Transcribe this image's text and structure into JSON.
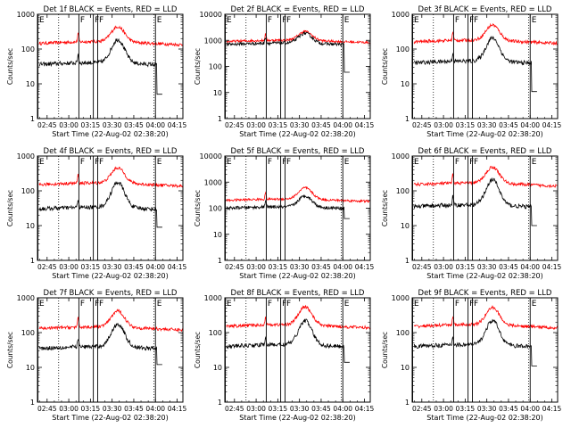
{
  "chart_data": [
    {
      "type": "line",
      "title": "Det 1f BLACK = Events, RED = LLD",
      "xlabel": "Start Time (22-Aug-02 02:38:20)",
      "ylabel": "Counts/sec",
      "yscale": "log",
      "ylim": [
        1,
        1000
      ],
      "yticks": [
        "1",
        "10",
        "100",
        "1000"
      ],
      "xticks": [
        "02:45",
        "03:00",
        "03:15",
        "03:30",
        "03:45",
        "04:00",
        "04:15"
      ],
      "xlim": [
        "02:38:20",
        "04:19"
      ],
      "grid": false,
      "markers": [
        {
          "label": "E",
          "time": "02:38:40"
        },
        {
          "label": "F",
          "time": "03:07"
        },
        {
          "label": "F",
          "time": "03:17"
        },
        {
          "label": "F",
          "time": "03:20"
        },
        {
          "label": "E",
          "time": "04:00"
        }
      ],
      "dotted_lines": [
        "02:53",
        "03:59"
      ],
      "series": [
        {
          "color": "#ff0000",
          "baseline": 145,
          "peak": 400
        },
        {
          "color": "#000000",
          "baseline": 36,
          "peak": 170,
          "dropout": 5
        }
      ]
    },
    {
      "type": "line",
      "title": "Det 2f BLACK = Events, RED = LLD",
      "xlabel": "Start Time (22-Aug-02 02:38:20)",
      "ylabel": "Counts/sec",
      "yscale": "log",
      "ylim": [
        1,
        10000
      ],
      "yticks": [
        "1",
        "10",
        "100",
        "1000",
        "10000"
      ],
      "xticks": [
        "02:45",
        "03:00",
        "03:15",
        "03:30",
        "03:45",
        "04:00",
        "04:15"
      ],
      "xlim": [
        "02:38:20",
        "04:19"
      ],
      "grid": false,
      "markers": [
        {
          "label": "E",
          "time": "02:38:40"
        },
        {
          "label": "F",
          "time": "03:07"
        },
        {
          "label": "F",
          "time": "03:17"
        },
        {
          "label": "F",
          "time": "03:20"
        },
        {
          "label": "E",
          "time": "04:00"
        }
      ],
      "dotted_lines": [
        "02:53",
        "03:59"
      ],
      "series": [
        {
          "color": "#ff0000",
          "baseline": 900,
          "peak": 2000
        },
        {
          "color": "#000000",
          "baseline": 700,
          "peak": 1700,
          "dropout": 60
        }
      ]
    },
    {
      "type": "line",
      "title": "Det 3f BLACK = Events, RED = LLD",
      "xlabel": "Start Time (22-Aug-02 02:38:20)",
      "ylabel": "Counts/sec",
      "yscale": "log",
      "ylim": [
        1,
        1000
      ],
      "yticks": [
        "1",
        "10",
        "100",
        "1000"
      ],
      "xticks": [
        "02:45",
        "03:00",
        "03:15",
        "03:30",
        "03:45",
        "04:00",
        "04:15"
      ],
      "xlim": [
        "02:38:20",
        "04:19"
      ],
      "grid": false,
      "markers": [
        {
          "label": "E",
          "time": "02:38:40"
        },
        {
          "label": "F",
          "time": "03:07"
        },
        {
          "label": "F",
          "time": "03:17"
        },
        {
          "label": "F",
          "time": "03:20"
        },
        {
          "label": "E",
          "time": "04:00"
        }
      ],
      "dotted_lines": [
        "02:53",
        "03:59"
      ],
      "series": [
        {
          "color": "#ff0000",
          "baseline": 160,
          "peak": 450
        },
        {
          "color": "#000000",
          "baseline": 40,
          "peak": 190,
          "dropout": 6
        }
      ]
    },
    {
      "type": "line",
      "title": "Det 4f BLACK = Events, RED = LLD",
      "xlabel": "Start Time (22-Aug-02 02:38:20)",
      "ylabel": "Counts/sec",
      "yscale": "log",
      "ylim": [
        1,
        1000
      ],
      "yticks": [
        "1",
        "10",
        "100",
        "1000"
      ],
      "xticks": [
        "02:45",
        "03:00",
        "03:15",
        "03:30",
        "03:45",
        "04:00",
        "04:15"
      ],
      "xlim": [
        "02:38:20",
        "04:19"
      ],
      "grid": false,
      "markers": [
        {
          "label": "E",
          "time": "02:38:40"
        },
        {
          "label": "F",
          "time": "03:07"
        },
        {
          "label": "F",
          "time": "03:17"
        },
        {
          "label": "F",
          "time": "03:20"
        },
        {
          "label": "E",
          "time": "04:00"
        }
      ],
      "dotted_lines": [
        "02:53",
        "03:59"
      ],
      "series": [
        {
          "color": "#ff0000",
          "baseline": 150,
          "peak": 420
        },
        {
          "color": "#000000",
          "baseline": 30,
          "peak": 160,
          "dropout": 9
        }
      ]
    },
    {
      "type": "line",
      "title": "Det 5f BLACK = Events, RED = LLD",
      "xlabel": "Start Time (22-Aug-02 02:38:20)",
      "ylabel": "Counts/sec",
      "yscale": "log",
      "ylim": [
        1,
        10000
      ],
      "yticks": [
        "1",
        "10",
        "100",
        "1000",
        "10000"
      ],
      "xticks": [
        "02:45",
        "03:00",
        "03:15",
        "03:30",
        "03:45",
        "04:00",
        "04:15"
      ],
      "xlim": [
        "02:38:20",
        "04:19"
      ],
      "grid": false,
      "markers": [
        {
          "label": "E",
          "time": "02:38:40"
        },
        {
          "label": "F",
          "time": "03:07"
        },
        {
          "label": "F",
          "time": "03:17"
        },
        {
          "label": "F",
          "time": "03:20"
        },
        {
          "label": "E",
          "time": "04:00"
        }
      ],
      "dotted_lines": [
        "02:53",
        "03:59"
      ],
      "series": [
        {
          "color": "#ff0000",
          "baseline": 200,
          "peak": 550
        },
        {
          "color": "#000000",
          "baseline": 100,
          "peak": 270,
          "dropout": 40
        }
      ]
    },
    {
      "type": "line",
      "title": "Det 6f BLACK = Events, RED = LLD",
      "xlabel": "Start Time (22-Aug-02 02:38:20)",
      "ylabel": "Counts/sec",
      "yscale": "log",
      "ylim": [
        1,
        1000
      ],
      "yticks": [
        "1",
        "10",
        "100",
        "1000"
      ],
      "xticks": [
        "02:45",
        "03:00",
        "03:15",
        "03:30",
        "03:45",
        "04:00",
        "04:15"
      ],
      "xlim": [
        "02:38:20",
        "04:19"
      ],
      "grid": false,
      "markers": [
        {
          "label": "E",
          "time": "02:38:40"
        },
        {
          "label": "F",
          "time": "03:07"
        },
        {
          "label": "F",
          "time": "03:17"
        },
        {
          "label": "F",
          "time": "03:20"
        },
        {
          "label": "E",
          "time": "04:00"
        }
      ],
      "dotted_lines": [
        "02:53",
        "03:59"
      ],
      "series": [
        {
          "color": "#ff0000",
          "baseline": 150,
          "peak": 440
        },
        {
          "color": "#000000",
          "baseline": 35,
          "peak": 190,
          "dropout": 10
        }
      ]
    },
    {
      "type": "line",
      "title": "Det 7f BLACK = Events, RED = LLD",
      "xlabel": "Start Time (22-Aug-02 02:38:20)",
      "ylabel": "Counts/sec",
      "yscale": "log",
      "ylim": [
        1,
        1000
      ],
      "yticks": [
        "1",
        "10",
        "100",
        "1000"
      ],
      "xticks": [
        "02:45",
        "03:00",
        "03:15",
        "03:30",
        "03:45",
        "04:00",
        "04:15"
      ],
      "xlim": [
        "02:38:20",
        "04:19"
      ],
      "grid": false,
      "markers": [
        {
          "label": "E",
          "time": "02:38:40"
        },
        {
          "label": "F",
          "time": "03:07"
        },
        {
          "label": "F",
          "time": "03:17"
        },
        {
          "label": "F",
          "time": "03:20"
        },
        {
          "label": "E",
          "time": "04:00"
        }
      ],
      "dotted_lines": [
        "02:53",
        "03:59"
      ],
      "series": [
        {
          "color": "#ff0000",
          "baseline": 130,
          "peak": 380
        },
        {
          "color": "#000000",
          "baseline": 35,
          "peak": 160,
          "dropout": 12
        }
      ]
    },
    {
      "type": "line",
      "title": "Det 8f BLACK = Events, RED = LLD",
      "xlabel": "Start Time (22-Aug-02 02:38:20)",
      "ylabel": "Counts/sec",
      "yscale": "log",
      "ylim": [
        1,
        1000
      ],
      "yticks": [
        "1",
        "10",
        "100",
        "1000"
      ],
      "xticks": [
        "02:45",
        "03:00",
        "03:15",
        "03:30",
        "03:45",
        "04:00",
        "04:15"
      ],
      "xlim": [
        "02:38:20",
        "04:19"
      ],
      "grid": false,
      "markers": [
        {
          "label": "E",
          "time": "02:38:40"
        },
        {
          "label": "F",
          "time": "03:07"
        },
        {
          "label": "F",
          "time": "03:17"
        },
        {
          "label": "F",
          "time": "03:20"
        },
        {
          "label": "E",
          "time": "04:00"
        }
      ],
      "dotted_lines": [
        "02:53",
        "03:59"
      ],
      "series": [
        {
          "color": "#ff0000",
          "baseline": 150,
          "peak": 500
        },
        {
          "color": "#000000",
          "baseline": 40,
          "peak": 200,
          "dropout": 14
        }
      ]
    },
    {
      "type": "line",
      "title": "Det 9f BLACK = Events, RED = LLD",
      "xlabel": "Start Time (22-Aug-02 02:38:20)",
      "ylabel": "Counts/sec",
      "yscale": "log",
      "ylim": [
        1,
        1000
      ],
      "yticks": [
        "1",
        "10",
        "100",
        "1000"
      ],
      "xticks": [
        "02:45",
        "03:00",
        "03:15",
        "03:30",
        "03:45",
        "04:00",
        "04:15"
      ],
      "xlim": [
        "02:38:20",
        "04:19"
      ],
      "grid": false,
      "markers": [
        {
          "label": "E",
          "time": "02:38:40"
        },
        {
          "label": "F",
          "time": "03:07"
        },
        {
          "label": "F",
          "time": "03:17"
        },
        {
          "label": "F",
          "time": "03:20"
        },
        {
          "label": "E",
          "time": "04:00"
        }
      ],
      "dotted_lines": [
        "02:53",
        "03:59"
      ],
      "series": [
        {
          "color": "#ff0000",
          "baseline": 150,
          "peak": 480
        },
        {
          "color": "#000000",
          "baseline": 40,
          "peak": 200,
          "dropout": 11
        }
      ]
    }
  ]
}
